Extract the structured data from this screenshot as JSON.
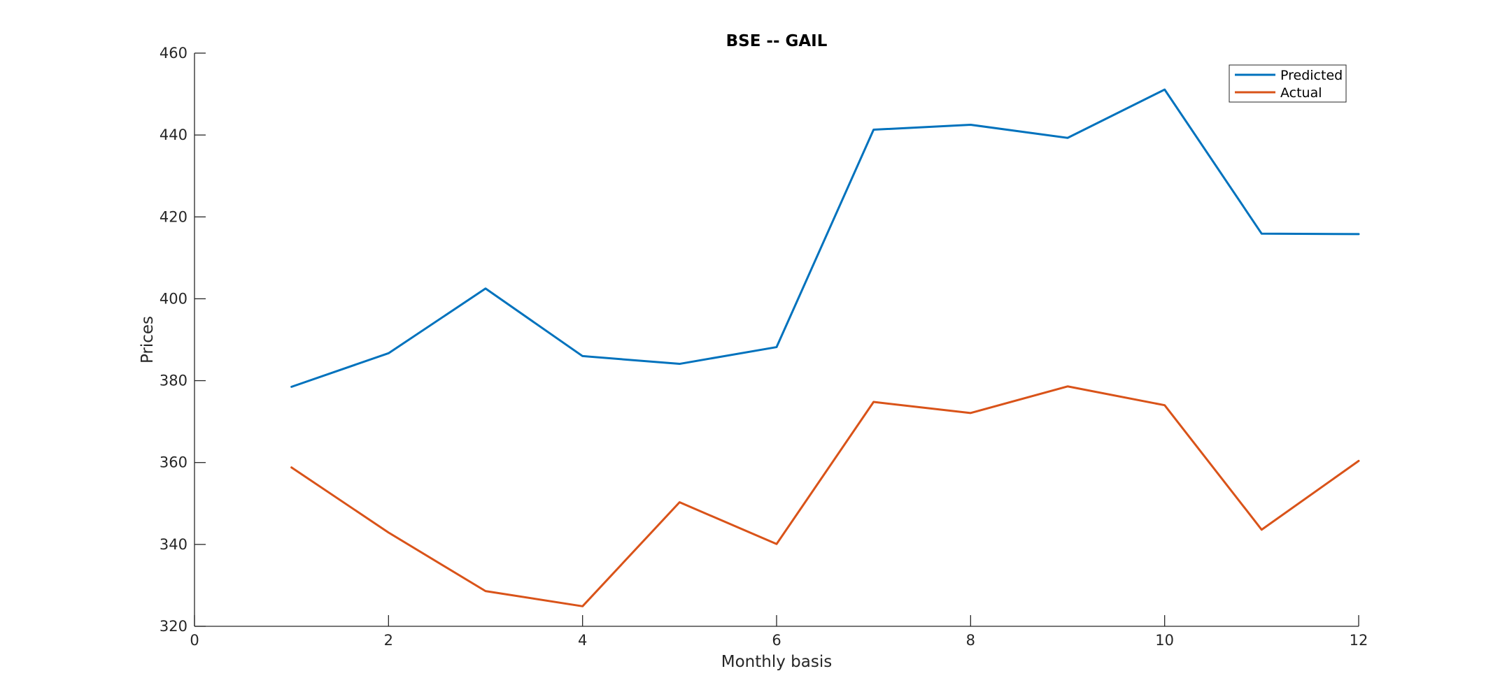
{
  "chart_data": {
    "type": "line",
    "title": "BSE -- GAIL",
    "xlabel": "Monthly basis",
    "ylabel": "Prices",
    "xlim": [
      0,
      12
    ],
    "ylim": [
      320,
      460
    ],
    "xticks": [
      0,
      2,
      4,
      6,
      8,
      10,
      12
    ],
    "yticks": [
      320,
      340,
      360,
      380,
      400,
      420,
      440,
      460
    ],
    "grid": false,
    "legend_position": "top-right",
    "x": [
      1,
      2,
      3,
      4,
      5,
      6,
      7,
      8,
      9,
      10,
      11,
      12
    ],
    "series": [
      {
        "name": "Predicted",
        "color": "#0072bd",
        "values": [
          378.5,
          386.7,
          402.5,
          386.0,
          384.1,
          388.2,
          441.3,
          442.5,
          439.3,
          451.1,
          415.9,
          415.8
        ]
      },
      {
        "name": "Actual",
        "color": "#d95319",
        "values": [
          358.8,
          342.9,
          328.6,
          324.9,
          350.3,
          340.1,
          374.8,
          372.1,
          378.6,
          374.0,
          343.6,
          360.4
        ]
      }
    ]
  }
}
